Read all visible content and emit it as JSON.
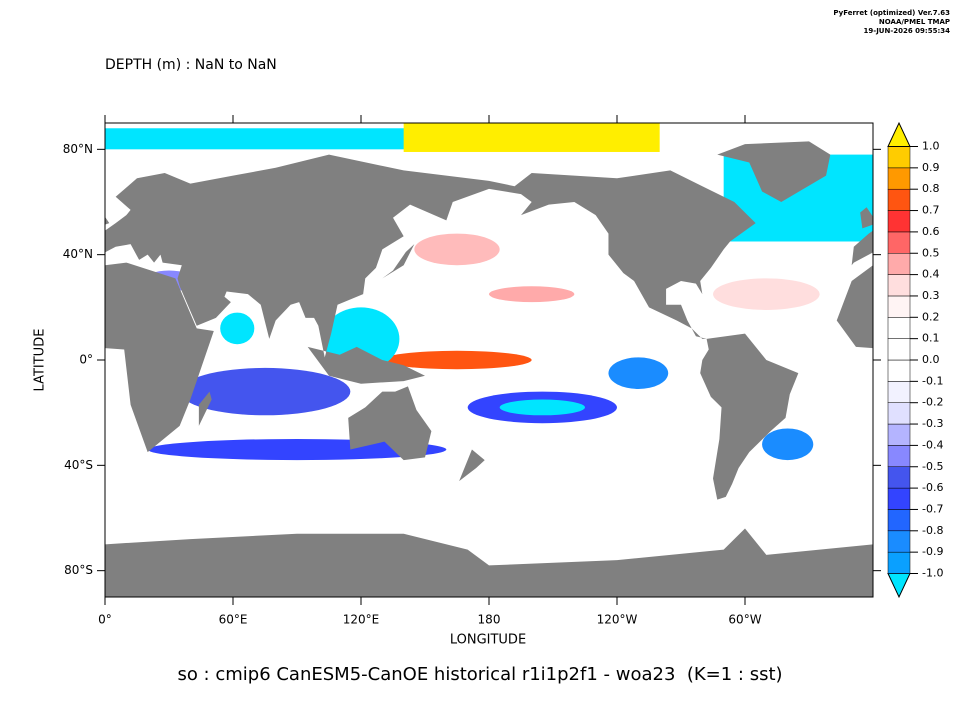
{
  "header": {
    "title": "DEPTH (m) : NaN to NaN",
    "credits": [
      "PyFerret (optimized) Ver.7.63",
      "NOAA/PMEL TMAP",
      "19-JUN-2026 09:55:34"
    ]
  },
  "map": {
    "xlabel": "LONGITUDE",
    "ylabel": "LATITUDE",
    "xlim": [
      0,
      360
    ],
    "ylim": [
      -90,
      90
    ],
    "xticks": [
      {
        "value": 0,
        "label": "0°"
      },
      {
        "value": 60,
        "label": "60°E"
      },
      {
        "value": 120,
        "label": "120°E"
      },
      180,
      {
        "value": 240,
        "label": "120°W"
      },
      {
        "value": 300,
        "label": "60°W"
      }
    ],
    "yticks": [
      {
        "value": 80,
        "label": "80°N"
      },
      {
        "value": 40,
        "label": "40°N"
      },
      {
        "value": 0,
        "label": "0°"
      },
      {
        "value": -40,
        "label": "40°S"
      },
      {
        "value": -80,
        "label": "80°S"
      }
    ],
    "land_color": "#808080"
  },
  "colorbar": {
    "levels": [
      {
        "value": -1,
        "label": "-1.0"
      },
      -0.9,
      -0.8,
      -0.7,
      -0.6,
      -0.5,
      -0.4,
      -0.3,
      -0.2,
      -0.1,
      {
        "value": 0,
        "label": "0.0"
      },
      0.1,
      0.2,
      0.3,
      0.4,
      0.5,
      0.6,
      0.7,
      0.8,
      0.9,
      {
        "value": 1,
        "label": "1.0"
      }
    ],
    "colors": [
      "#00e5ff",
      "#0aa0ff",
      "#1a8cff",
      "#2266ff",
      "#3344ff",
      "#4455ee",
      "#8888ff",
      "#b4b4ff",
      "#e0e0ff",
      "#f2f2ff",
      "#ffffff",
      "#ffffff",
      "#ffffff",
      "#fff4f4",
      "#ffdede",
      "#ffaaaa",
      "#ff6666",
      "#ff3333",
      "#ff5511",
      "#ff9900",
      "#ffcc00",
      "#ffee00"
    ]
  },
  "caption": "so : cmip6 CanESM5-CanOE historical r1i1p2f1 - woa23  (K=1 : sst)"
}
